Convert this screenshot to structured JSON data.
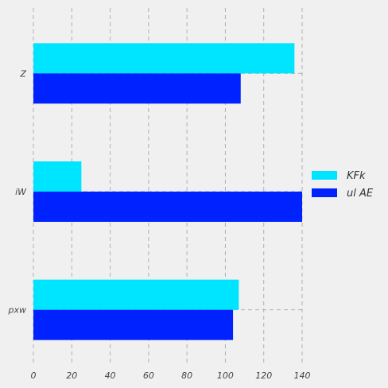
{
  "chart_data": {
    "type": "bar",
    "orientation": "horizontal",
    "categories": [
      "Z",
      "iW",
      "pxw"
    ],
    "series": [
      {
        "name": "KFk",
        "color": "#00e5ff",
        "values": [
          136,
          25,
          107
        ]
      },
      {
        "name": "ul AE",
        "color": "#0022ff",
        "values": [
          108,
          140,
          104
        ]
      }
    ],
    "xlim": [
      0,
      140
    ],
    "xticks": [
      0,
      20,
      40,
      60,
      80,
      100,
      120,
      140
    ],
    "grid": true,
    "legend_position": "right",
    "title": "",
    "xlabel": "",
    "ylabel": ""
  }
}
